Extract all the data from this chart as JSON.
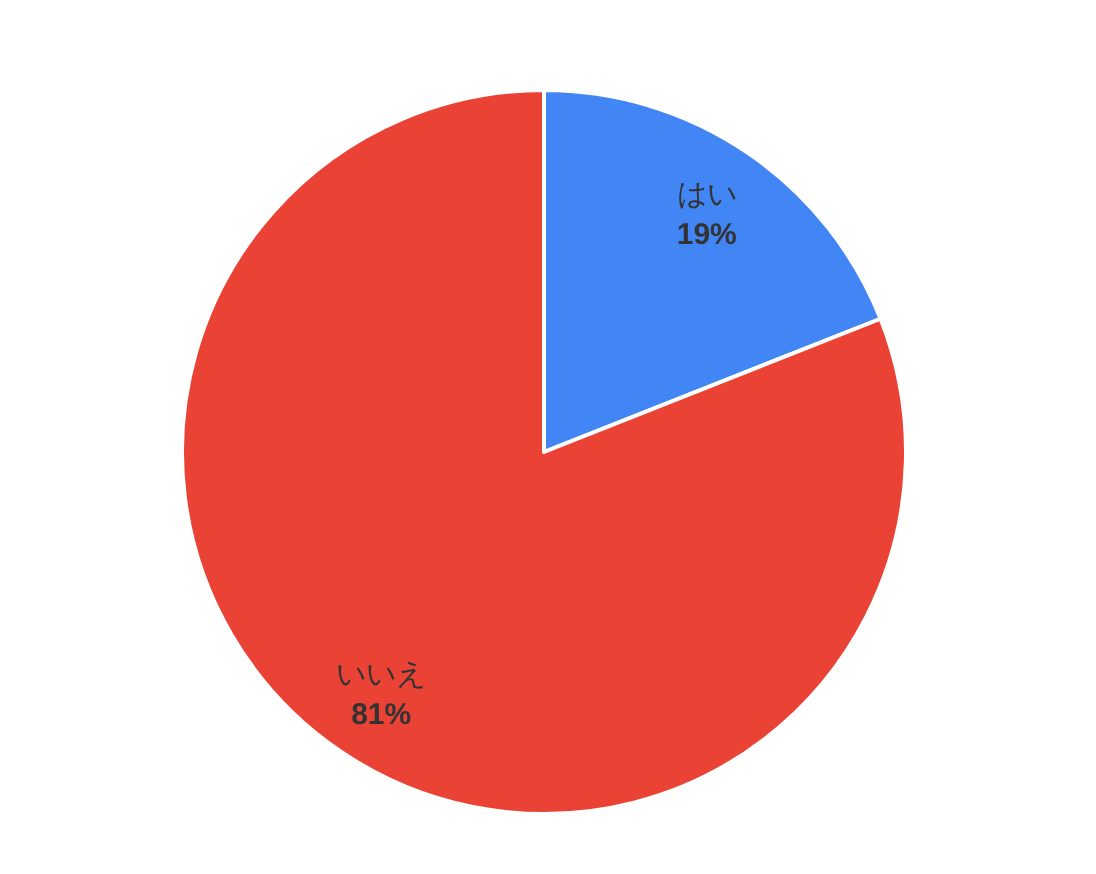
{
  "chart_data": {
    "type": "pie",
    "categories": [
      "はい",
      "いいえ"
    ],
    "values": [
      19,
      81
    ],
    "colors": [
      "#4285f4",
      "#ea4335"
    ],
    "value_labels": [
      "19%",
      "81%"
    ]
  }
}
